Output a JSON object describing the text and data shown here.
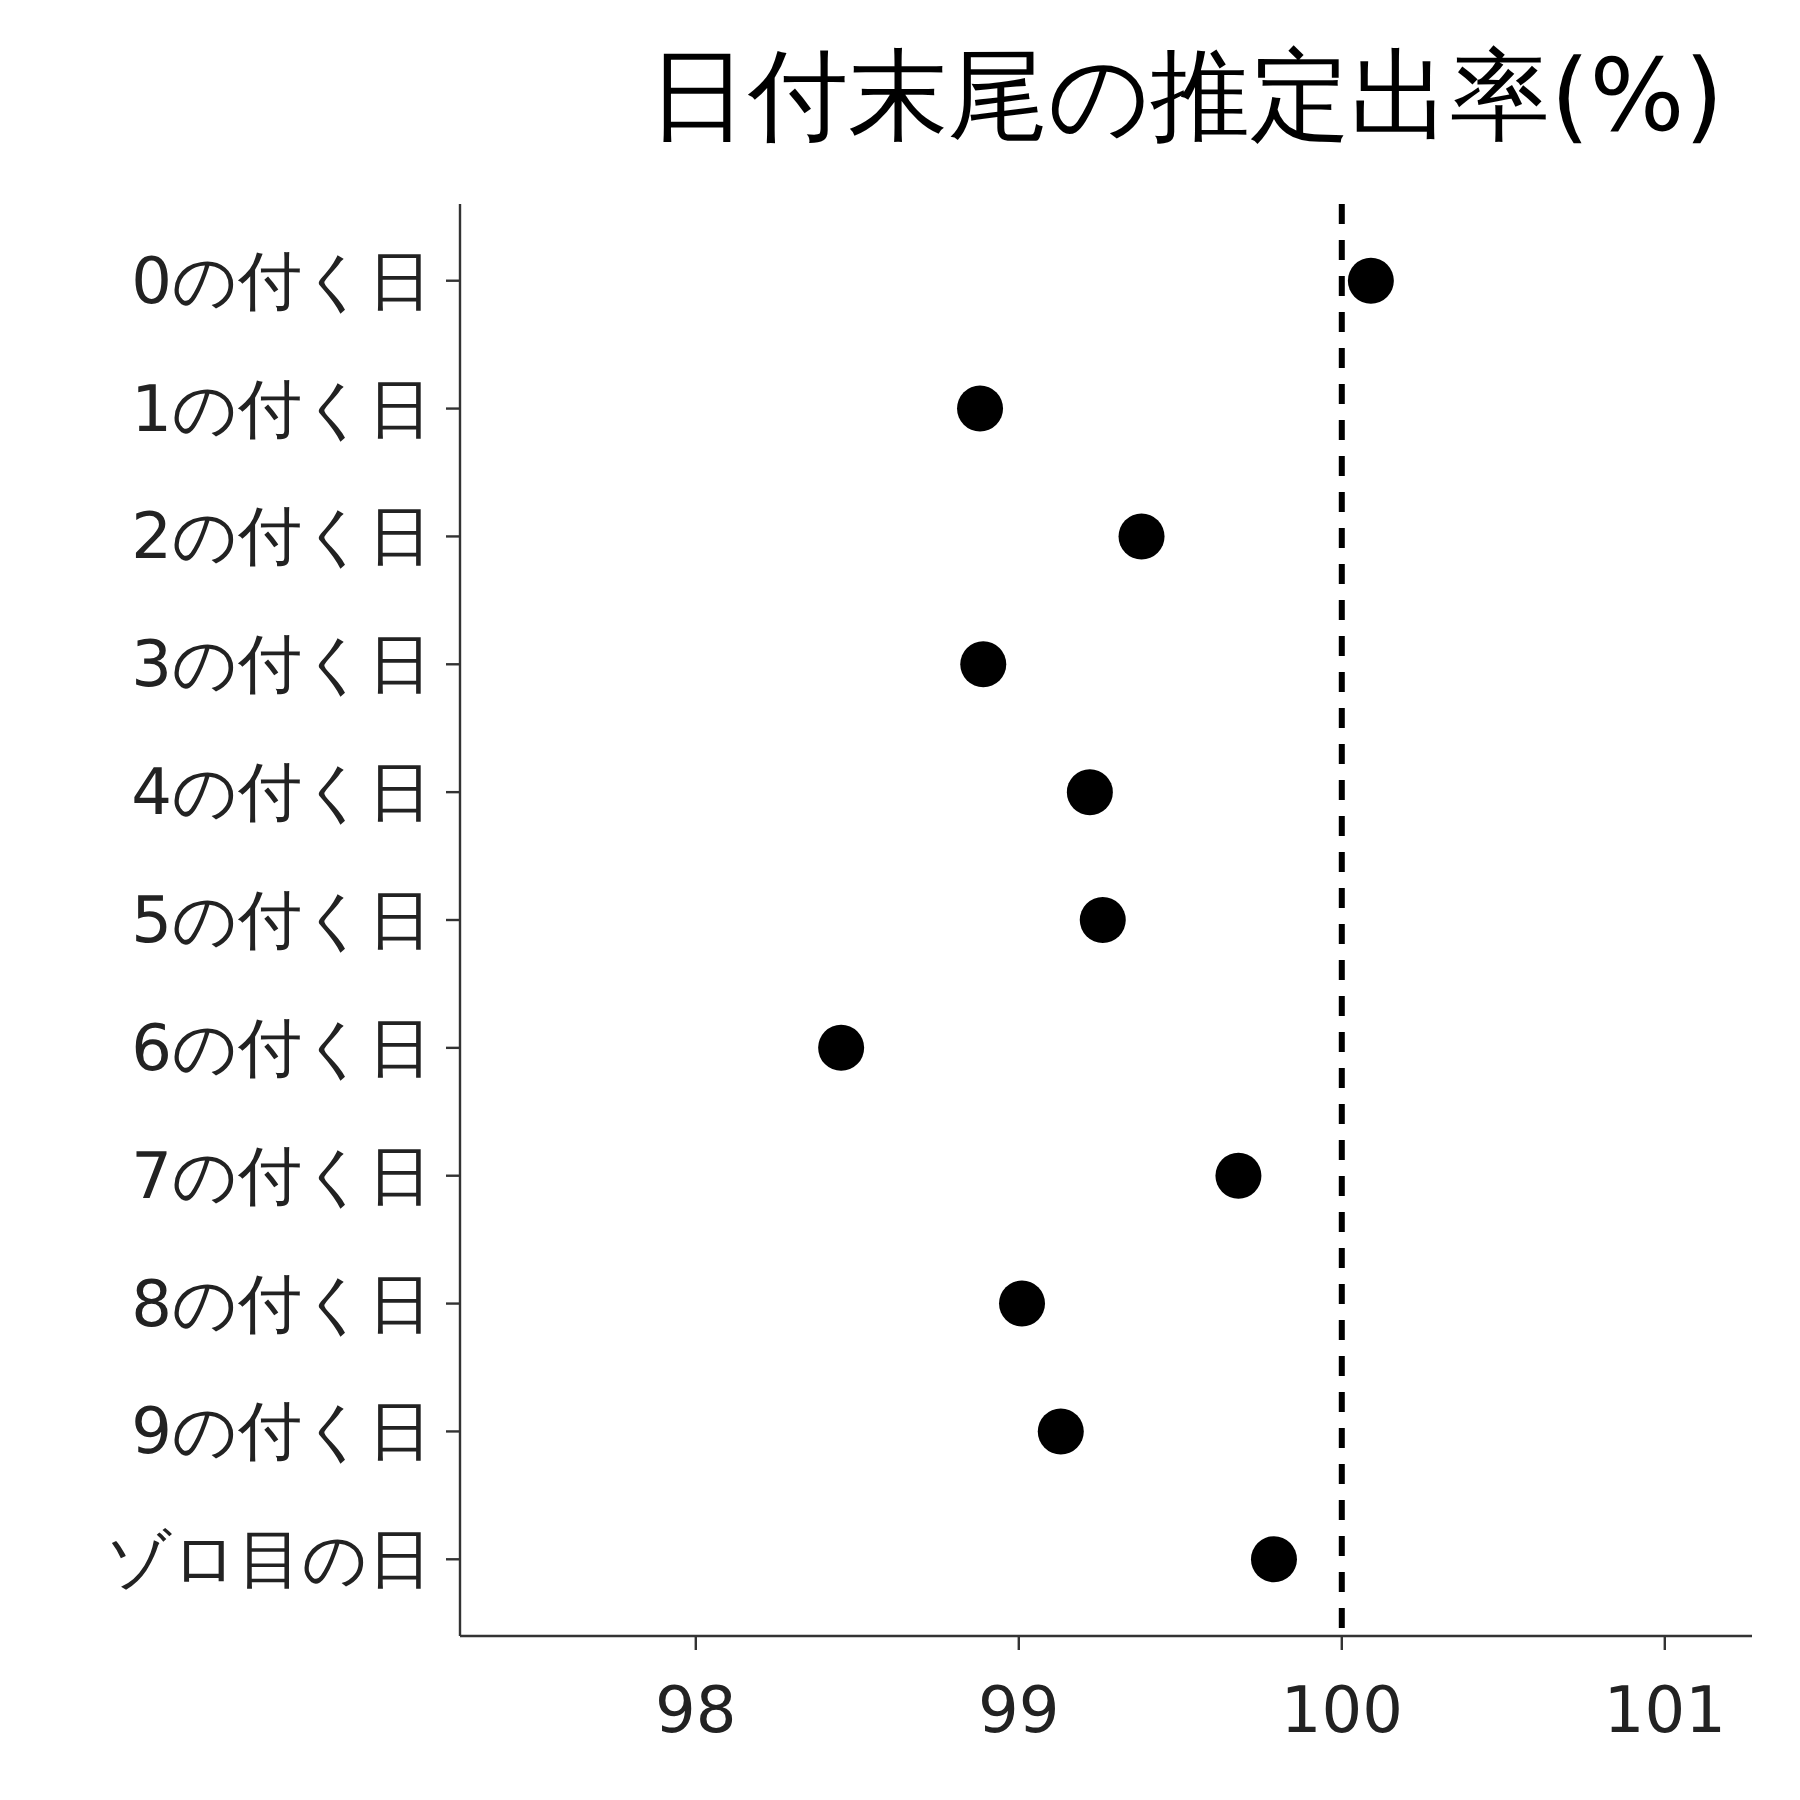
{
  "chart_data": {
    "type": "scatter",
    "title": "日付末尾の推定出率(%)",
    "orientation": "horizontal",
    "categories": [
      "0の付く日",
      "1の付く日",
      "2の付く日",
      "3の付く日",
      "4の付く日",
      "5の付く日",
      "6の付く日",
      "7の付く日",
      "8の付く日",
      "9の付く日",
      "ゾロ目の日"
    ],
    "values": [
      100.09,
      98.88,
      99.38,
      98.89,
      99.22,
      99.26,
      98.45,
      99.68,
      99.01,
      99.13,
      99.79
    ],
    "color": "#000000",
    "marker": "circle",
    "xlim": [
      97.27,
      101.27
    ],
    "xticks": [
      98,
      99,
      100,
      101
    ],
    "ref_lines": [
      {
        "axis": "x",
        "value": 100,
        "line_style": "dashed",
        "color": "#000000"
      }
    ],
    "grid": false
  }
}
